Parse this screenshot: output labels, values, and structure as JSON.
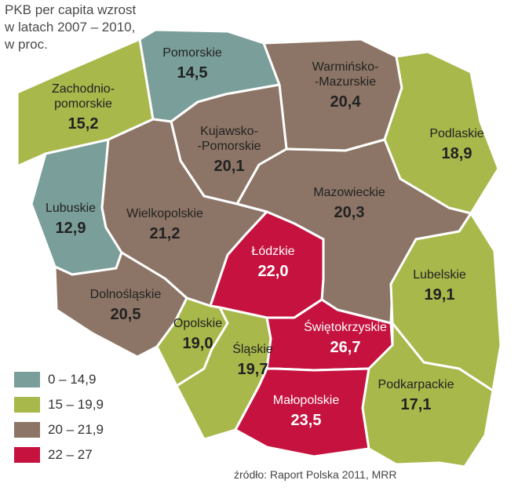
{
  "title_lines": [
    "PKB per capita wzrost",
    "w latach 2007 – 2010,",
    "w proc."
  ],
  "legend": [
    {
      "label": "0 – 14,9",
      "color": "#7a9e99"
    },
    {
      "label": "15 – 19,9",
      "color": "#a8b84b"
    },
    {
      "label": "20  –  21,9",
      "color": "#8c7566"
    },
    {
      "label": "22 – 27",
      "color": "#c5123f"
    }
  ],
  "regions": [
    {
      "id": "zachodniopomorskie",
      "name_lines": [
        "Zachodnio-",
        "pomorskie"
      ],
      "value": "15,2",
      "bin": 1
    },
    {
      "id": "pomorskie",
      "name_lines": [
        "Pomorskie"
      ],
      "value": "14,5",
      "bin": 0
    },
    {
      "id": "warminsko-mazurskie",
      "name_lines": [
        "Warmińsko-",
        "-Mazurskie"
      ],
      "value": "20,4",
      "bin": 2
    },
    {
      "id": "podlaskie",
      "name_lines": [
        "Podlaskie"
      ],
      "value": "18,9",
      "bin": 1
    },
    {
      "id": "kujawsko-pomorskie",
      "name_lines": [
        "Kujawsko-",
        "-Pomorskie"
      ],
      "value": "20,1",
      "bin": 2
    },
    {
      "id": "mazowieckie",
      "name_lines": [
        "Mazowieckie"
      ],
      "value": "20,3",
      "bin": 2
    },
    {
      "id": "lubuskie",
      "name_lines": [
        "Lubuskie"
      ],
      "value": "12,9",
      "bin": 0
    },
    {
      "id": "wielkopolskie",
      "name_lines": [
        "Wielkopolskie"
      ],
      "value": "21,2",
      "bin": 2
    },
    {
      "id": "lodzkie",
      "name_lines": [
        "Łódzkie"
      ],
      "value": "22,0",
      "bin": 3
    },
    {
      "id": "lubelskie",
      "name_lines": [
        "Lubelskie"
      ],
      "value": "19,1",
      "bin": 1
    },
    {
      "id": "dolnoslaskie",
      "name_lines": [
        "Dolnośląskie"
      ],
      "value": "20,5",
      "bin": 2
    },
    {
      "id": "opolskie",
      "name_lines": [
        "Opolskie"
      ],
      "value": "19,0",
      "bin": 1
    },
    {
      "id": "slaskie",
      "name_lines": [
        "Śląskie"
      ],
      "value": "19,7",
      "bin": 1
    },
    {
      "id": "swietokrzyskie",
      "name_lines": [
        "Świętokrzyskie"
      ],
      "value": "26,7",
      "bin": 3
    },
    {
      "id": "malopolskie",
      "name_lines": [
        "Małopolskie"
      ],
      "value": "23,5",
      "bin": 3
    },
    {
      "id": "podkarpackie",
      "name_lines": [
        "Podkarpackie"
      ],
      "value": "17,1",
      "bin": 1
    }
  ],
  "source": "źródło: Raport Polska 2011, MRR"
}
